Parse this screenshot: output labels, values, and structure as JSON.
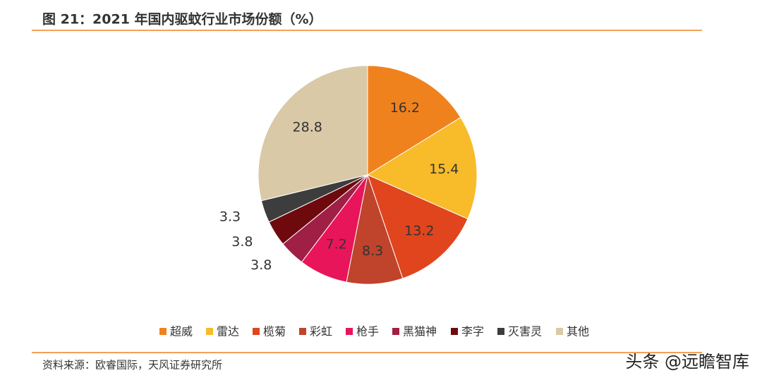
{
  "chart_data": {
    "type": "pie",
    "title": "图 21：2021 年国内驱蚊行业市场份额（%）",
    "categories": [
      "超威",
      "雷达",
      "榄菊",
      "彩虹",
      "枪手",
      "黑猫神",
      "李字",
      "灭害灵",
      "其他"
    ],
    "values": [
      16.2,
      15.4,
      13.2,
      8.3,
      7.2,
      3.8,
      3.8,
      3.3,
      28.8
    ],
    "colors": [
      "#f0821e",
      "#f8bb2a",
      "#e0451e",
      "#c0432b",
      "#e8155a",
      "#a01f45",
      "#6e0a0e",
      "#3d3d3d",
      "#d9c9a6"
    ],
    "source": "资料来源：欧睿国际，天风证券研究所",
    "watermark": "头条 @远瞻智库"
  }
}
